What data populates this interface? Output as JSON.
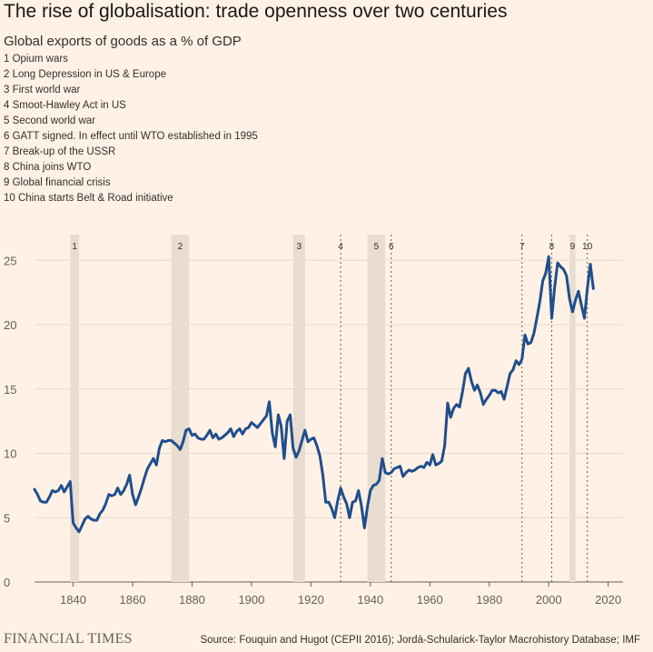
{
  "header": {
    "title": "The rise of globalisation: trade openness over two centuries",
    "subtitle": "Global exports of goods as a % of GDP"
  },
  "events": [
    {
      "number": "1",
      "label": "1 Opium wars",
      "kind": "band",
      "start": 1839,
      "end": 1842
    },
    {
      "number": "2",
      "label": "2 Long Depression in US & Europe",
      "kind": "band",
      "start": 1873,
      "end": 1879
    },
    {
      "number": "3",
      "label": "3 First world war",
      "kind": "band",
      "start": 1914,
      "end": 1918
    },
    {
      "number": "4",
      "label": "4 Smoot-Hawley Act in US",
      "kind": "line",
      "start": 1930
    },
    {
      "number": "5",
      "label": "5 Second world war",
      "kind": "band",
      "start": 1939,
      "end": 1945
    },
    {
      "number": "6",
      "label": "6 GATT signed. In effect until WTO established in 1995",
      "kind": "line",
      "start": 1947
    },
    {
      "number": "7",
      "label": "7 Break-up of the USSR",
      "kind": "line",
      "start": 1991
    },
    {
      "number": "8",
      "label": "8 China joins WTO",
      "kind": "line",
      "start": 2001
    },
    {
      "number": "9",
      "label": "9 Global financial crisis",
      "kind": "band",
      "start": 2007,
      "end": 2009
    },
    {
      "number": "10",
      "label": "10 China starts Belt & Road initiative",
      "kind": "line",
      "start": 2013
    }
  ],
  "chart_data": {
    "type": "line",
    "title": "The rise of globalisation: trade openness over two centuries",
    "ylabel": "",
    "xlabel": "",
    "xlim": [
      1827,
      2025
    ],
    "ylim": [
      0,
      27
    ],
    "x_ticks": [
      1840,
      1860,
      1880,
      1900,
      1920,
      1940,
      1960,
      1980,
      2000,
      2020
    ],
    "y_ticks": [
      0,
      5,
      10,
      15,
      20,
      25
    ],
    "grid": "horizontal",
    "series": [
      {
        "color": "#1f4e8c",
        "points": [
          [
            1827,
            7.2
          ],
          [
            1828,
            6.8
          ],
          [
            1829,
            6.3
          ],
          [
            1830,
            6.2
          ],
          [
            1831,
            6.2
          ],
          [
            1832,
            6.6
          ],
          [
            1833,
            7.1
          ],
          [
            1834,
            7.0
          ],
          [
            1835,
            7.1
          ],
          [
            1836,
            7.5
          ],
          [
            1837,
            7.0
          ],
          [
            1838,
            7.4
          ],
          [
            1839,
            7.8
          ],
          [
            1840,
            4.6
          ],
          [
            1841,
            4.2
          ],
          [
            1842,
            3.9
          ],
          [
            1843,
            4.4
          ],
          [
            1844,
            4.9
          ],
          [
            1845,
            5.1
          ],
          [
            1846,
            4.9
          ],
          [
            1847,
            4.8
          ],
          [
            1848,
            4.8
          ],
          [
            1849,
            5.3
          ],
          [
            1850,
            5.6
          ],
          [
            1851,
            6.1
          ],
          [
            1852,
            6.8
          ],
          [
            1853,
            6.7
          ],
          [
            1854,
            6.8
          ],
          [
            1855,
            7.3
          ],
          [
            1856,
            6.8
          ],
          [
            1857,
            7.1
          ],
          [
            1858,
            7.6
          ],
          [
            1859,
            8.3
          ],
          [
            1860,
            6.8
          ],
          [
            1861,
            6.0
          ],
          [
            1862,
            6.6
          ],
          [
            1863,
            7.3
          ],
          [
            1864,
            8.1
          ],
          [
            1865,
            8.8
          ],
          [
            1866,
            9.2
          ],
          [
            1867,
            9.6
          ],
          [
            1868,
            9.1
          ],
          [
            1869,
            10.4
          ],
          [
            1870,
            11.0
          ],
          [
            1871,
            10.9
          ],
          [
            1872,
            11.0
          ],
          [
            1873,
            11.0
          ],
          [
            1874,
            10.8
          ],
          [
            1875,
            10.6
          ],
          [
            1876,
            10.3
          ],
          [
            1877,
            10.9
          ],
          [
            1878,
            11.8
          ],
          [
            1879,
            11.9
          ],
          [
            1880,
            11.4
          ],
          [
            1881,
            11.5
          ],
          [
            1882,
            11.2
          ],
          [
            1883,
            11.1
          ],
          [
            1884,
            11.1
          ],
          [
            1885,
            11.4
          ],
          [
            1886,
            11.8
          ],
          [
            1887,
            11.2
          ],
          [
            1888,
            11.5
          ],
          [
            1889,
            11.1
          ],
          [
            1890,
            11.2
          ],
          [
            1891,
            11.4
          ],
          [
            1892,
            11.6
          ],
          [
            1893,
            11.9
          ],
          [
            1894,
            11.3
          ],
          [
            1895,
            11.7
          ],
          [
            1896,
            11.9
          ],
          [
            1897,
            11.5
          ],
          [
            1898,
            11.9
          ],
          [
            1899,
            12.0
          ],
          [
            1900,
            12.4
          ],
          [
            1901,
            12.2
          ],
          [
            1902,
            12.0
          ],
          [
            1903,
            12.3
          ],
          [
            1904,
            12.6
          ],
          [
            1905,
            12.9
          ],
          [
            1906,
            14.0
          ],
          [
            1907,
            11.6
          ],
          [
            1908,
            10.5
          ],
          [
            1909,
            13.0
          ],
          [
            1910,
            12.1
          ],
          [
            1911,
            9.6
          ],
          [
            1912,
            12.5
          ],
          [
            1913,
            13.0
          ],
          [
            1914,
            10.4
          ],
          [
            1915,
            9.7
          ],
          [
            1916,
            10.2
          ],
          [
            1917,
            11.0
          ],
          [
            1918,
            11.8
          ],
          [
            1919,
            10.9
          ],
          [
            1920,
            11.1
          ],
          [
            1921,
            11.2
          ],
          [
            1922,
            10.6
          ],
          [
            1923,
            9.8
          ],
          [
            1924,
            8.3
          ],
          [
            1925,
            6.2
          ],
          [
            1926,
            6.2
          ],
          [
            1927,
            5.7
          ],
          [
            1928,
            5.0
          ],
          [
            1929,
            6.3
          ],
          [
            1930,
            7.3
          ],
          [
            1931,
            6.6
          ],
          [
            1932,
            6.1
          ],
          [
            1933,
            5.0
          ],
          [
            1934,
            6.2
          ],
          [
            1935,
            6.3
          ],
          [
            1936,
            7.1
          ],
          [
            1937,
            5.9
          ],
          [
            1938,
            4.2
          ],
          [
            1939,
            5.8
          ],
          [
            1940,
            7.1
          ],
          [
            1941,
            7.5
          ],
          [
            1942,
            7.6
          ],
          [
            1943,
            7.9
          ],
          [
            1944,
            9.6
          ],
          [
            1945,
            8.5
          ],
          [
            1946,
            8.4
          ],
          [
            1947,
            8.5
          ],
          [
            1948,
            8.8
          ],
          [
            1949,
            8.9
          ],
          [
            1950,
            9.0
          ],
          [
            1951,
            8.2
          ],
          [
            1952,
            8.5
          ],
          [
            1953,
            8.7
          ],
          [
            1954,
            8.6
          ],
          [
            1955,
            8.7
          ],
          [
            1956,
            8.9
          ],
          [
            1957,
            9.0
          ],
          [
            1958,
            8.9
          ],
          [
            1959,
            9.3
          ],
          [
            1960,
            9.1
          ],
          [
            1961,
            9.9
          ],
          [
            1962,
            9.1
          ],
          [
            1963,
            9.2
          ],
          [
            1964,
            9.4
          ],
          [
            1965,
            10.6
          ],
          [
            1966,
            13.9
          ],
          [
            1967,
            12.8
          ],
          [
            1968,
            13.5
          ],
          [
            1969,
            13.8
          ],
          [
            1970,
            13.6
          ],
          [
            1971,
            14.8
          ],
          [
            1972,
            16.2
          ],
          [
            1973,
            16.6
          ],
          [
            1974,
            15.6
          ],
          [
            1975,
            14.9
          ],
          [
            1976,
            15.3
          ],
          [
            1977,
            14.7
          ],
          [
            1978,
            13.8
          ],
          [
            1979,
            14.2
          ],
          [
            1980,
            14.5
          ],
          [
            1981,
            14.9
          ],
          [
            1982,
            14.9
          ],
          [
            1983,
            14.7
          ],
          [
            1984,
            14.8
          ],
          [
            1985,
            14.2
          ],
          [
            1986,
            15.2
          ],
          [
            1987,
            16.2
          ],
          [
            1988,
            16.5
          ],
          [
            1989,
            17.2
          ],
          [
            1990,
            16.9
          ],
          [
            1991,
            17.3
          ],
          [
            1992,
            19.2
          ],
          [
            1993,
            18.5
          ],
          [
            1994,
            18.6
          ],
          [
            1995,
            19.3
          ],
          [
            1996,
            20.5
          ],
          [
            1997,
            21.8
          ],
          [
            1998,
            23.4
          ],
          [
            1999,
            24.0
          ],
          [
            2000,
            25.3
          ],
          [
            2001,
            20.5
          ],
          [
            2002,
            22.9
          ],
          [
            2003,
            24.8
          ],
          [
            2004,
            24.5
          ],
          [
            2005,
            24.3
          ],
          [
            2006,
            23.8
          ],
          [
            2007,
            22.0
          ],
          [
            2008,
            21.0
          ],
          [
            2009,
            21.9
          ],
          [
            2010,
            22.6
          ],
          [
            2011,
            21.5
          ],
          [
            2012,
            20.5
          ],
          [
            2013,
            22.8
          ],
          [
            2014,
            24.7
          ],
          [
            2015,
            22.8
          ]
        ]
      }
    ]
  },
  "footer": {
    "brand": "FINANCIAL TIMES",
    "source": "Source: Fouquin and Hugot (CEPII 2016); Jordà-Schularick-Taylor Macrohistory Database; IMF"
  }
}
